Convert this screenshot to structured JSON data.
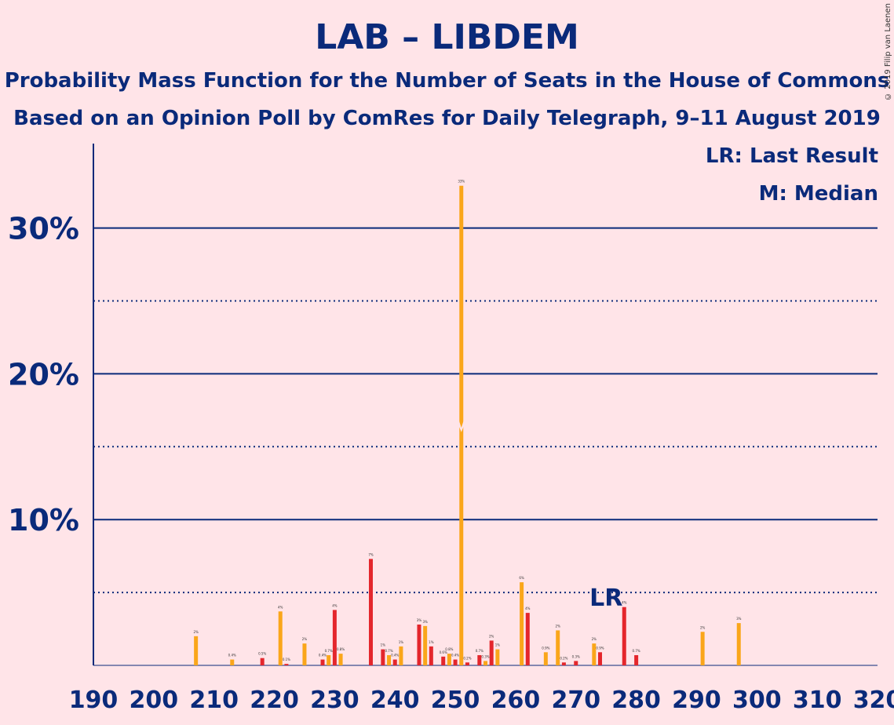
{
  "title": "LAB – LIBDEM",
  "subtitle1": "Probability Mass Function for the Number of Seats in the House of Commons",
  "subtitle2": "Based on an Opinion Poll by ComRes for Daily Telegraph, 9–11 August 2019",
  "legend": {
    "lr": "LR: Last Result",
    "m": "M: Median"
  },
  "copyright": "© 2019 Filip van Laenen",
  "colors": {
    "lab": "#E4262C",
    "libdem": "#FAA61A",
    "axis": "#0A2A7A",
    "background": "#FFE4E8"
  },
  "chart_data": {
    "type": "bar",
    "xlabel": "",
    "ylabel": "",
    "xlim": [
      190,
      320
    ],
    "ylim": [
      0,
      35
    ],
    "x_ticks": [
      190,
      200,
      210,
      220,
      230,
      240,
      250,
      260,
      270,
      280,
      290,
      300,
      310,
      320
    ],
    "y_ticks": [
      {
        "value": 10,
        "label": "10%"
      },
      {
        "value": 20,
        "label": "20%"
      },
      {
        "value": 30,
        "label": "30%"
      }
    ],
    "minor_gridlines": [
      5,
      15,
      25
    ],
    "median_seat": 251,
    "last_result_seat": 275,
    "last_result_label": "LR",
    "series": [
      {
        "name": "LAB",
        "color": "#E4262C",
        "points": [
          [
            218,
            0.5
          ],
          [
            222,
            0.1
          ],
          [
            228,
            0.4
          ],
          [
            230,
            3.8
          ],
          [
            236,
            7.3
          ],
          [
            238,
            1.1
          ],
          [
            240,
            0.4
          ],
          [
            244,
            2.8
          ],
          [
            246,
            1.3
          ],
          [
            248,
            0.6
          ],
          [
            250,
            0.4
          ],
          [
            252,
            0.2
          ],
          [
            254,
            0.7
          ],
          [
            256,
            1.7
          ],
          [
            262,
            3.6
          ],
          [
            268,
            0.2
          ],
          [
            270,
            0.3
          ],
          [
            274,
            0.9
          ],
          [
            278,
            4.0
          ],
          [
            280,
            0.7
          ]
        ]
      },
      {
        "name": "LIBDEM",
        "color": "#FAA61A",
        "points": [
          [
            207,
            2.0
          ],
          [
            213,
            0.4
          ],
          [
            221,
            3.7
          ],
          [
            225,
            1.5
          ],
          [
            229,
            0.7
          ],
          [
            231,
            0.8
          ],
          [
            239,
            0.7
          ],
          [
            241,
            1.3
          ],
          [
            245,
            2.7
          ],
          [
            249,
            0.8
          ],
          [
            251,
            32.9
          ],
          [
            255,
            0.3
          ],
          [
            257,
            1.1
          ],
          [
            261,
            5.7
          ],
          [
            265,
            0.9
          ],
          [
            267,
            2.4
          ],
          [
            273,
            1.5
          ],
          [
            291,
            2.3
          ],
          [
            297,
            2.9
          ]
        ]
      }
    ]
  }
}
